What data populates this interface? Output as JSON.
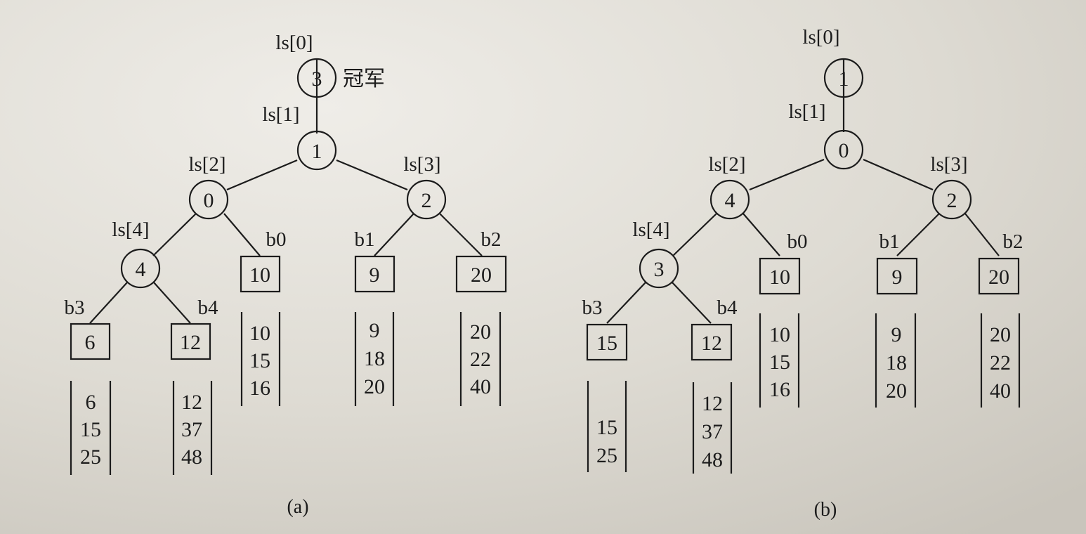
{
  "diagrams": [
    {
      "caption": "(a)",
      "winner_label": "冠军",
      "nodes": [
        {
          "label": "ls[0]",
          "value": "3"
        },
        {
          "label": "ls[1]",
          "value": "1"
        },
        {
          "label": "ls[2]",
          "value": "0"
        },
        {
          "label": "ls[3]",
          "value": "2"
        },
        {
          "label": "ls[4]",
          "value": "4"
        }
      ],
      "leaves": [
        {
          "label": "b0",
          "value": "10",
          "run": [
            "10",
            "15",
            "16"
          ]
        },
        {
          "label": "b1",
          "value": "9",
          "run": [
            "9",
            "18",
            "20"
          ]
        },
        {
          "label": "b2",
          "value": "20",
          "run": [
            "20",
            "22",
            "40"
          ]
        },
        {
          "label": "b3",
          "value": "6",
          "run": [
            "6",
            "15",
            "25"
          ]
        },
        {
          "label": "b4",
          "value": "12",
          "run": [
            "12",
            "37",
            "48"
          ]
        }
      ]
    },
    {
      "caption": "(b)",
      "nodes": [
        {
          "label": "ls[0]",
          "value": "1"
        },
        {
          "label": "ls[1]",
          "value": "0"
        },
        {
          "label": "ls[2]",
          "value": "4"
        },
        {
          "label": "ls[3]",
          "value": "2"
        },
        {
          "label": "ls[4]",
          "value": "3"
        }
      ],
      "leaves": [
        {
          "label": "b0",
          "value": "10",
          "run": [
            "10",
            "15",
            "16"
          ]
        },
        {
          "label": "b1",
          "value": "9",
          "run": [
            "9",
            "18",
            "20"
          ]
        },
        {
          "label": "b2",
          "value": "20",
          "run": [
            "20",
            "22",
            "40"
          ]
        },
        {
          "label": "b3",
          "value": "15",
          "run": [
            "15",
            "25"
          ]
        },
        {
          "label": "b4",
          "value": "12",
          "run": [
            "12",
            "37",
            "48"
          ]
        }
      ]
    }
  ]
}
